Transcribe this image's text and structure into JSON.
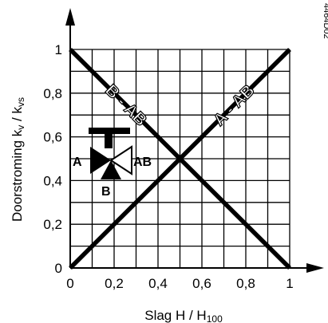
{
  "chart_data": {
    "type": "line",
    "xlabel_main": "Slag H / H",
    "xlabel_sub": "100",
    "ylabel_main": "Doorstroming k",
    "ylabel_sub1": "v",
    "ylabel_mid": " / k",
    "ylabel_sub2": "vs",
    "xlim": [
      0,
      1
    ],
    "ylim": [
      0,
      1
    ],
    "x_ticks": [
      "0",
      "0,2",
      "0,4",
      "0,6",
      "0,8",
      "1"
    ],
    "y_ticks": [
      "0",
      "0,2",
      "0,4",
      "0,6",
      "0,8",
      "1"
    ],
    "grid": true,
    "series": [
      {
        "name": "A - AB",
        "x": [
          0,
          1
        ],
        "y": [
          0,
          1
        ]
      },
      {
        "name": "B - AB",
        "x": [
          0,
          1
        ],
        "y": [
          1,
          0
        ]
      }
    ],
    "annotations": {
      "valve_port_a": "A",
      "valve_port_ab": "AB",
      "valve_port_b": "B",
      "document_id": "4464D02"
    }
  }
}
